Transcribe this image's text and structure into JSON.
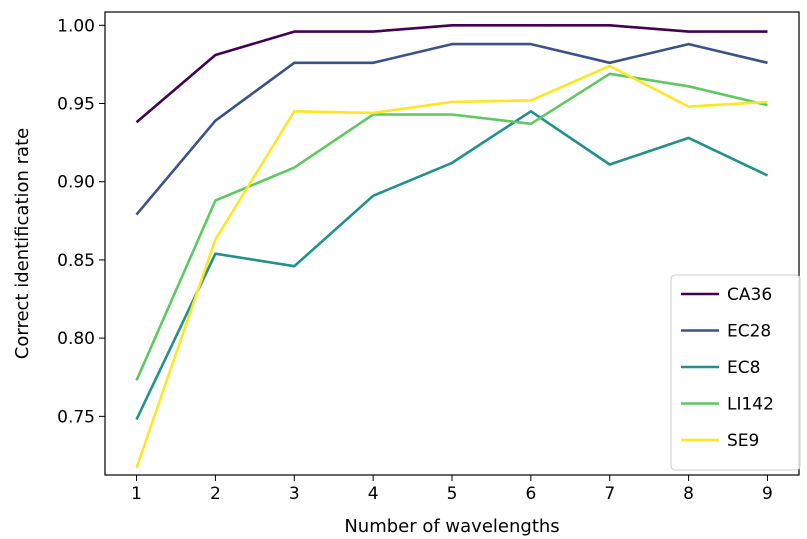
{
  "chart_data": {
    "type": "line",
    "xlabel": "Number of wavelengths",
    "ylabel": "Correct identification rate",
    "x": [
      1,
      2,
      3,
      4,
      5,
      6,
      7,
      8,
      9
    ],
    "xlim": [
      0.6,
      9.4
    ],
    "ylim": [
      0.7125,
      1.0085
    ],
    "xticks": [
      "1",
      "2",
      "3",
      "4",
      "5",
      "6",
      "7",
      "8",
      "9"
    ],
    "yticks": [
      "0.75",
      "0.80",
      "0.85",
      "0.90",
      "0.95",
      "1.00"
    ],
    "grid": false,
    "legend_position": "lower-right",
    "series": [
      {
        "name": "CA36",
        "color": "#440154",
        "values": [
          0.938,
          0.981,
          0.996,
          0.996,
          1.0,
          1.0,
          1.0,
          0.996,
          0.996
        ]
      },
      {
        "name": "EC28",
        "color": "#3b528b",
        "values": [
          0.879,
          0.939,
          0.976,
          0.976,
          0.988,
          0.988,
          0.976,
          0.988,
          0.976
        ]
      },
      {
        "name": "EC8",
        "color": "#21918c",
        "values": [
          0.748,
          0.854,
          0.846,
          0.891,
          0.912,
          0.945,
          0.911,
          0.928,
          0.904
        ]
      },
      {
        "name": "LI142",
        "color": "#5ec962",
        "values": [
          0.773,
          0.888,
          0.909,
          0.943,
          0.943,
          0.937,
          0.969,
          0.961,
          0.949
        ]
      },
      {
        "name": "SE9",
        "color": "#fde725",
        "values": [
          0.717,
          0.863,
          0.945,
          0.944,
          0.951,
          0.952,
          0.974,
          0.948,
          0.951
        ]
      }
    ]
  }
}
